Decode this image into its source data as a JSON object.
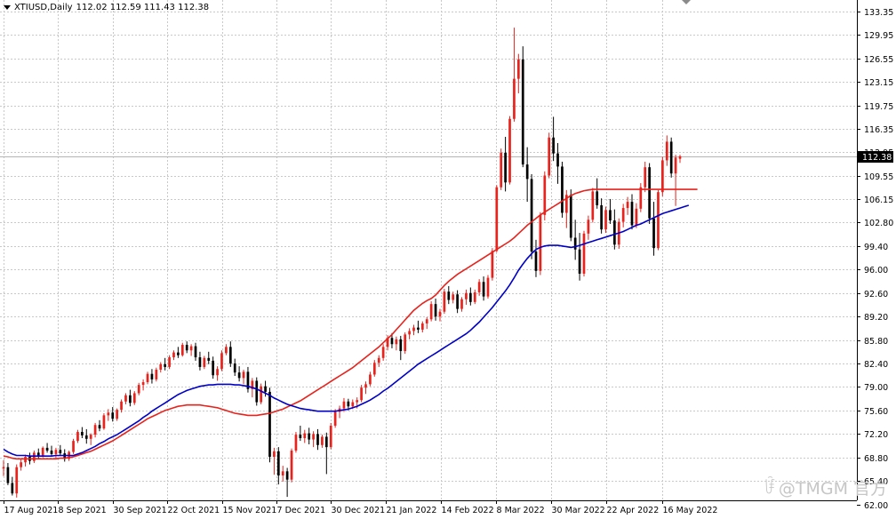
{
  "header": {
    "symbol_timeframe": "XTIUSD,Daily",
    "ohlc": "112.02 112.59 111.43 112.38"
  },
  "price_tag": "112.38",
  "watermark": {
    "text": "@TMGM 官方",
    "icon": "wave-logo-icon"
  },
  "colors": {
    "bull": "#e8221c",
    "bear": "#000000",
    "ma_fast": "#0000c8",
    "ma_slow": "#e8221c",
    "grid": "#c8c8c8",
    "price_line": "#b4b4b4",
    "price_tag_bg": "#000000",
    "price_tag_fg": "#ffffff"
  },
  "chart_data": {
    "type": "candlestick",
    "ylim": [
      62.6,
      135.0
    ],
    "grid": true,
    "yticks": [
      "133.35",
      "129.95",
      "126.55",
      "123.15",
      "119.75",
      "116.35",
      "112.95",
      "109.55",
      "106.15",
      "102.80",
      "99.40",
      "96.00",
      "92.60",
      "89.20",
      "85.80",
      "82.40",
      "79.00",
      "75.60",
      "72.20",
      "68.80",
      "65.40",
      "62.00"
    ],
    "xticks": [
      "17 Aug 2021",
      "8 Sep 2021",
      "30 Sep 2021",
      "22 Oct 2021",
      "15 Nov 2021",
      "7 Dec 2021",
      "30 Dec 2021",
      "21 Jan 2022",
      "14 Feb 2022",
      "8 Mar 2022",
      "30 Mar 2022",
      "22 Apr 2022",
      "16 May 2022"
    ],
    "last_price": 112.38,
    "candles": [
      [
        67.2,
        68.4,
        66.1,
        67.4
      ],
      [
        67.4,
        68.0,
        64.8,
        65.1
      ],
      [
        65.1,
        66.0,
        63.3,
        63.6
      ],
      [
        63.6,
        67.8,
        63.0,
        67.4
      ],
      [
        67.4,
        68.6,
        66.9,
        68.1
      ],
      [
        68.1,
        69.2,
        67.5,
        68.9
      ],
      [
        68.9,
        69.5,
        67.8,
        68.3
      ],
      [
        68.3,
        69.8,
        68.0,
        69.5
      ],
      [
        69.5,
        70.1,
        68.7,
        69.0
      ],
      [
        69.0,
        70.4,
        68.8,
        70.2
      ],
      [
        70.2,
        70.9,
        69.5,
        69.8
      ],
      [
        69.8,
        70.5,
        68.9,
        69.3
      ],
      [
        69.3,
        70.2,
        68.6,
        69.9
      ],
      [
        69.9,
        70.6,
        69.0,
        69.4
      ],
      [
        69.4,
        70.0,
        68.2,
        68.6
      ],
      [
        68.6,
        69.8,
        68.3,
        69.6
      ],
      [
        69.6,
        71.5,
        69.3,
        71.2
      ],
      [
        71.2,
        72.8,
        70.9,
        72.5
      ],
      [
        72.5,
        73.2,
        71.6,
        72.0
      ],
      [
        72.0,
        72.9,
        70.8,
        71.5
      ],
      [
        71.5,
        72.3,
        70.6,
        72.1
      ],
      [
        72.1,
        73.8,
        71.7,
        73.5
      ],
      [
        73.5,
        74.2,
        72.6,
        73.0
      ],
      [
        73.0,
        75.2,
        72.8,
        74.9
      ],
      [
        74.9,
        75.8,
        74.1,
        75.3
      ],
      [
        75.3,
        76.1,
        74.0,
        74.4
      ],
      [
        74.4,
        75.9,
        74.1,
        75.7
      ],
      [
        75.7,
        77.2,
        75.3,
        76.9
      ],
      [
        76.9,
        78.1,
        76.5,
        77.8
      ],
      [
        77.8,
        78.6,
        76.2,
        76.7
      ],
      [
        76.7,
        78.4,
        76.4,
        78.1
      ],
      [
        78.1,
        79.6,
        77.8,
        79.3
      ],
      [
        79.3,
        80.1,
        78.5,
        79.7
      ],
      [
        79.7,
        81.2,
        79.4,
        80.9
      ],
      [
        80.9,
        81.6,
        79.5,
        80.1
      ],
      [
        80.1,
        81.8,
        79.8,
        81.5
      ],
      [
        81.5,
        82.6,
        81.1,
        82.3
      ],
      [
        82.3,
        83.2,
        81.4,
        81.9
      ],
      [
        81.9,
        83.6,
        81.6,
        83.3
      ],
      [
        83.3,
        84.3,
        82.9,
        84.0
      ],
      [
        84.0,
        84.8,
        83.2,
        83.6
      ],
      [
        83.6,
        85.4,
        83.4,
        85.1
      ],
      [
        85.1,
        85.6,
        83.9,
        84.3
      ],
      [
        84.3,
        85.2,
        83.5,
        84.9
      ],
      [
        84.9,
        85.4,
        82.8,
        83.3
      ],
      [
        83.3,
        84.1,
        81.4,
        81.9
      ],
      [
        81.9,
        83.5,
        81.6,
        83.2
      ],
      [
        83.2,
        84.1,
        82.3,
        82.8
      ],
      [
        82.8,
        83.4,
        80.2,
        80.7
      ],
      [
        80.7,
        82.0,
        79.9,
        81.6
      ],
      [
        81.6,
        84.3,
        81.3,
        83.9
      ],
      [
        83.9,
        85.2,
        83.6,
        84.8
      ],
      [
        84.8,
        85.6,
        81.9,
        82.4
      ],
      [
        82.4,
        83.1,
        80.6,
        81.1
      ],
      [
        81.1,
        82.0,
        79.8,
        80.3
      ],
      [
        80.3,
        81.5,
        79.4,
        81.2
      ],
      [
        81.2,
        81.9,
        78.2,
        78.7
      ],
      [
        78.7,
        80.3,
        77.5,
        79.9
      ],
      [
        79.9,
        80.4,
        76.3,
        76.8
      ],
      [
        76.8,
        79.5,
        76.5,
        79.1
      ],
      [
        79.1,
        79.9,
        77.6,
        78.3
      ],
      [
        78.3,
        78.9,
        68.1,
        68.9
      ],
      [
        68.9,
        70.2,
        66.3,
        69.7
      ],
      [
        69.7,
        70.3,
        64.9,
        66.2
      ],
      [
        66.2,
        67.6,
        65.3,
        66.8
      ],
      [
        66.8,
        67.3,
        63.1,
        65.6
      ],
      [
        65.6,
        70.1,
        65.2,
        69.8
      ],
      [
        69.8,
        72.5,
        69.5,
        72.1
      ],
      [
        72.1,
        73.4,
        71.2,
        71.6
      ],
      [
        71.6,
        72.8,
        70.9,
        72.3
      ],
      [
        72.3,
        73.1,
        70.7,
        71.4
      ],
      [
        71.4,
        72.6,
        70.3,
        72.2
      ],
      [
        72.2,
        72.9,
        69.9,
        70.6
      ],
      [
        70.6,
        72.1,
        70.2,
        71.8
      ],
      [
        71.8,
        72.4,
        66.4,
        70.3
      ],
      [
        70.3,
        73.8,
        70.0,
        73.4
      ],
      [
        73.4,
        75.8,
        73.1,
        75.4
      ],
      [
        75.4,
        76.3,
        74.5,
        75.9
      ],
      [
        75.9,
        77.4,
        75.4,
        76.9
      ],
      [
        76.9,
        77.3,
        75.6,
        76.2
      ],
      [
        76.2,
        77.2,
        75.8,
        76.8
      ],
      [
        76.8,
        77.5,
        75.9,
        77.1
      ],
      [
        77.1,
        79.3,
        76.8,
        78.9
      ],
      [
        78.9,
        79.8,
        78.0,
        79.4
      ],
      [
        79.4,
        81.2,
        79.1,
        80.8
      ],
      [
        80.8,
        82.9,
        80.5,
        82.5
      ],
      [
        82.5,
        83.6,
        81.9,
        83.2
      ],
      [
        83.2,
        85.2,
        82.8,
        84.8
      ],
      [
        84.8,
        86.5,
        84.3,
        86.1
      ],
      [
        86.1,
        86.8,
        84.6,
        85.2
      ],
      [
        85.2,
        86.3,
        84.3,
        85.9
      ],
      [
        85.9,
        86.4,
        82.9,
        84.2
      ],
      [
        84.2,
        86.9,
        83.8,
        86.6
      ],
      [
        86.6,
        87.5,
        85.9,
        87.1
      ],
      [
        87.1,
        88.0,
        86.5,
        87.6
      ],
      [
        87.6,
        88.6,
        86.8,
        87.3
      ],
      [
        87.3,
        88.5,
        86.9,
        88.2
      ],
      [
        88.2,
        89.1,
        87.4,
        88.8
      ],
      [
        88.8,
        91.4,
        88.5,
        91.0
      ],
      [
        91.0,
        91.8,
        88.6,
        89.2
      ],
      [
        89.2,
        90.3,
        88.5,
        89.9
      ],
      [
        89.9,
        93.2,
        89.6,
        92.8
      ],
      [
        92.8,
        93.6,
        91.0,
        91.6
      ],
      [
        91.6,
        92.8,
        91.1,
        92.4
      ],
      [
        92.4,
        93.0,
        89.7,
        90.3
      ],
      [
        90.3,
        92.0,
        89.9,
        91.7
      ],
      [
        91.7,
        93.1,
        90.9,
        92.6
      ],
      [
        92.6,
        93.4,
        90.8,
        91.3
      ],
      [
        91.3,
        93.1,
        91.0,
        92.7
      ],
      [
        92.7,
        94.6,
        92.2,
        94.2
      ],
      [
        94.2,
        95.0,
        91.5,
        92.1
      ],
      [
        92.1,
        95.2,
        91.8,
        94.8
      ],
      [
        94.8,
        99.1,
        94.4,
        98.7
      ],
      [
        98.7,
        108.2,
        98.5,
        107.9
      ],
      [
        107.9,
        113.5,
        107.5,
        112.9
      ],
      [
        112.9,
        115.2,
        107.3,
        108.6
      ],
      [
        108.6,
        118.2,
        108.3,
        117.8
      ],
      [
        117.8,
        131.0,
        117.4,
        123.6
      ],
      [
        123.6,
        127.2,
        121.5,
        126.4
      ],
      [
        126.4,
        128.3,
        110.8,
        111.2
      ],
      [
        111.2,
        113.7,
        105.8,
        109.1
      ],
      [
        109.1,
        109.8,
        97.5,
        98.6
      ],
      [
        98.6,
        100.3,
        94.9,
        95.8
      ],
      [
        95.8,
        104.3,
        95.2,
        103.9
      ],
      [
        103.9,
        110.2,
        103.1,
        109.6
      ],
      [
        109.6,
        115.8,
        109.2,
        115.1
      ],
      [
        115.1,
        118.1,
        111.7,
        112.8
      ],
      [
        112.8,
        114.3,
        108.4,
        110.9
      ],
      [
        110.9,
        111.6,
        103.5,
        104.2
      ],
      [
        104.2,
        107.5,
        102.0,
        106.8
      ],
      [
        106.8,
        107.6,
        100.1,
        100.6
      ],
      [
        100.6,
        103.2,
        97.4,
        98.9
      ],
      [
        98.9,
        101.3,
        94.4,
        95.4
      ],
      [
        95.4,
        101.6,
        95.0,
        101.2
      ],
      [
        101.2,
        103.8,
        100.3,
        103.2
      ],
      [
        103.2,
        107.8,
        102.8,
        107.3
      ],
      [
        107.3,
        109.2,
        104.8,
        105.3
      ],
      [
        105.3,
        106.3,
        101.2,
        101.8
      ],
      [
        101.8,
        105.1,
        101.3,
        104.6
      ],
      [
        104.6,
        106.2,
        102.6,
        103.1
      ],
      [
        103.1,
        104.7,
        98.9,
        99.6
      ],
      [
        99.6,
        103.4,
        99.0,
        102.9
      ],
      [
        102.9,
        105.5,
        102.1,
        104.9
      ],
      [
        104.9,
        106.5,
        103.9,
        105.8
      ],
      [
        105.8,
        106.9,
        101.8,
        102.4
      ],
      [
        102.4,
        105.6,
        102.0,
        104.8
      ],
      [
        104.8,
        108.5,
        104.3,
        107.9
      ],
      [
        107.9,
        111.6,
        107.2,
        110.8
      ],
      [
        110.8,
        111.4,
        102.6,
        103.4
      ],
      [
        103.4,
        105.8,
        98.0,
        99.1
      ],
      [
        99.1,
        107.5,
        98.8,
        107.2
      ],
      [
        107.2,
        112.3,
        106.6,
        111.8
      ],
      [
        111.8,
        115.4,
        111.0,
        114.5
      ],
      [
        114.5,
        115.1,
        109.3,
        109.9
      ],
      [
        109.9,
        112.6,
        105.2,
        112.2
      ],
      [
        112.02,
        112.59,
        111.43,
        112.38
      ]
    ],
    "ma_fast": [
      70.0,
      69.6,
      69.3,
      69.1,
      69.1,
      69.1,
      69.0,
      69.0,
      69.0,
      69.0,
      69.0,
      69.0,
      69.1,
      69.1,
      69.1,
      69.1,
      69.1,
      69.3,
      69.5,
      69.8,
      70.1,
      70.4,
      70.8,
      71.1,
      71.5,
      71.8,
      72.1,
      72.5,
      72.9,
      73.3,
      73.7,
      74.1,
      74.6,
      75.0,
      75.5,
      75.9,
      76.3,
      76.7,
      77.1,
      77.5,
      77.9,
      78.2,
      78.5,
      78.7,
      78.9,
      79.1,
      79.2,
      79.3,
      79.3,
      79.4,
      79.4,
      79.4,
      79.4,
      79.3,
      79.3,
      79.2,
      79.1,
      78.9,
      78.7,
      78.4,
      78.1,
      77.8,
      77.4,
      77.1,
      76.8,
      76.5,
      76.3,
      76.1,
      75.9,
      75.8,
      75.7,
      75.6,
      75.5,
      75.5,
      75.5,
      75.5,
      75.5,
      75.6,
      75.7,
      75.8,
      76.0,
      76.2,
      76.5,
      76.8,
      77.1,
      77.5,
      77.9,
      78.4,
      78.8,
      79.3,
      79.8,
      80.3,
      80.8,
      81.3,
      81.8,
      82.3,
      82.7,
      83.1,
      83.5,
      83.9,
      84.3,
      84.7,
      85.1,
      85.5,
      85.9,
      86.3,
      86.7,
      87.2,
      87.8,
      88.4,
      89.1,
      89.8,
      90.5,
      91.3,
      92.1,
      92.9,
      93.8,
      94.8,
      95.9,
      96.8,
      97.6,
      98.3,
      98.9,
      99.2,
      99.4,
      99.5,
      99.5,
      99.5,
      99.4,
      99.3,
      99.2,
      99.3,
      99.5,
      99.7,
      99.9,
      100.1,
      100.3,
      100.5,
      100.7,
      100.9,
      101.1,
      101.3,
      101.5,
      101.8,
      102.1,
      102.4,
      102.6,
      102.9,
      103.2,
      103.5,
      103.8,
      104.1,
      104.3,
      104.5,
      104.7,
      104.9,
      105.1,
      105.3
    ],
    "ma_slow": [
      69.0,
      68.9,
      68.7,
      68.6,
      68.6,
      68.6,
      68.6,
      68.6,
      68.6,
      68.6,
      68.6,
      68.6,
      68.6,
      68.7,
      68.7,
      68.8,
      68.9,
      69.1,
      69.3,
      69.5,
      69.7,
      70.0,
      70.3,
      70.6,
      70.9,
      71.2,
      71.6,
      72.0,
      72.4,
      72.8,
      73.2,
      73.6,
      74.0,
      74.4,
      74.7,
      75.0,
      75.3,
      75.6,
      75.8,
      76.0,
      76.2,
      76.3,
      76.4,
      76.4,
      76.4,
      76.4,
      76.3,
      76.2,
      76.1,
      76.0,
      75.8,
      75.6,
      75.4,
      75.2,
      75.1,
      75.0,
      74.9,
      74.9,
      74.9,
      75.0,
      75.1,
      75.2,
      75.4,
      75.6,
      75.8,
      76.1,
      76.4,
      76.7,
      77.0,
      77.4,
      77.8,
      78.2,
      78.6,
      79.0,
      79.4,
      79.8,
      80.2,
      80.6,
      81.0,
      81.4,
      81.8,
      82.3,
      82.8,
      83.3,
      83.8,
      84.3,
      84.8,
      85.4,
      86.0,
      86.6,
      87.3,
      88.0,
      88.7,
      89.4,
      90.1,
      90.6,
      91.1,
      91.5,
      91.8,
      92.3,
      93.0,
      93.7,
      94.3,
      94.8,
      95.3,
      95.7,
      96.1,
      96.5,
      96.9,
      97.3,
      97.7,
      98.1,
      98.5,
      98.9,
      99.3,
      99.7,
      100.1,
      100.6,
      101.2,
      101.8,
      102.4,
      102.9,
      103.4,
      103.9,
      104.3,
      104.7,
      105.1,
      105.5,
      105.9,
      106.3,
      106.7,
      107.0,
      107.2,
      107.4,
      107.5,
      107.6,
      107.6,
      107.6,
      107.6,
      107.6,
      107.6,
      107.6,
      107.6,
      107.6,
      107.6,
      107.6,
      107.6,
      107.6,
      107.6,
      107.6,
      107.6,
      107.6,
      107.6,
      107.6,
      107.6,
      107.6,
      107.6,
      107.6,
      107.6,
      107.6
    ]
  }
}
